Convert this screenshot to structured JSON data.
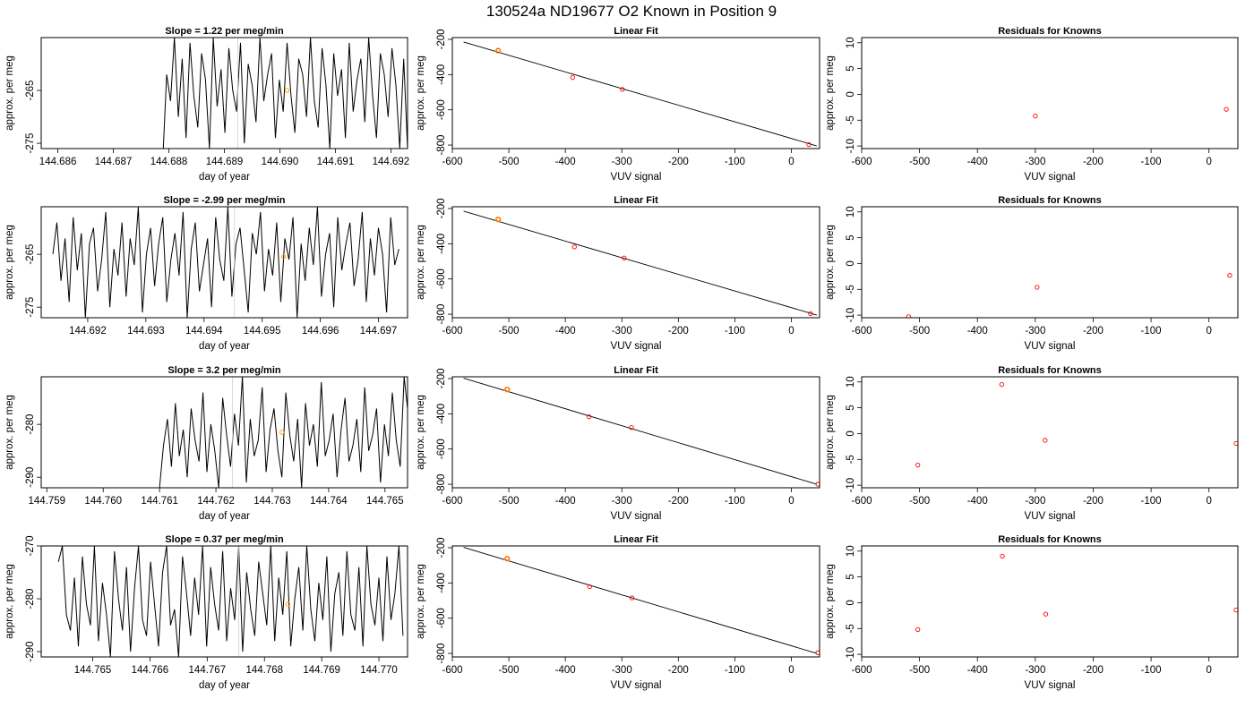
{
  "suptitle": "130524a     ND19677   O2 Known in Position  9",
  "colors": {
    "line": "#000000",
    "point": "#ff0000",
    "highlight": "#ffa500"
  },
  "chart_data": [
    {
      "type": "line",
      "row": 0,
      "panel": "timeseries",
      "title": "Slope =  1.22  per meg/min",
      "xlabel": "day of year",
      "ylabel": "approx. per meg",
      "xlim": [
        144.6857,
        144.6923
      ],
      "ylim": [
        -276,
        -255
      ],
      "xticks": [
        "144.686",
        "144.687",
        "144.688",
        "144.689",
        "144.690",
        "144.691",
        "144.692"
      ],
      "yticks": [
        "-265",
        "-275"
      ],
      "x": [
        144.6879,
        144.68796,
        144.68803,
        144.6881,
        144.68817,
        144.68824,
        144.68831,
        144.68838,
        144.68845,
        144.68852,
        144.68859,
        144.68866,
        144.68873,
        144.6888,
        144.68887,
        144.68894,
        144.68901,
        144.68908,
        144.68915,
        144.68922,
        144.68929,
        144.68936,
        144.68943,
        144.6895,
        144.68957,
        144.68964,
        144.68971,
        144.68978,
        144.68985,
        144.68992,
        144.68999,
        144.69006,
        144.69013,
        144.6902,
        144.69027,
        144.69034,
        144.69041,
        144.69048,
        144.69055,
        144.69062,
        144.69069,
        144.69076,
        144.69083,
        144.6909,
        144.69097,
        144.69104,
        144.69111,
        144.69118,
        144.69125,
        144.69132,
        144.69139,
        144.69146,
        144.69153,
        144.6916,
        144.69167,
        144.69174,
        144.69181,
        144.69188,
        144.69195,
        144.69202,
        144.69209,
        144.69216,
        144.69223,
        144.6923
      ],
      "y": [
        -276,
        -262,
        -267,
        -255,
        -270,
        -259,
        -274,
        -256,
        -266,
        -272,
        -258,
        -263,
        -276,
        -255,
        -268,
        -261,
        -273,
        -257,
        -265,
        -269,
        -256,
        -275,
        -260,
        -264,
        -271,
        -255,
        -267,
        -262,
        -258,
        -274,
        -263,
        -269,
        -256,
        -266,
        -273,
        -259,
        -262,
        -270,
        -255,
        -267,
        -272,
        -257,
        -264,
        -276,
        -258,
        -266,
        -261,
        -274,
        -256,
        -269,
        -263,
        -259,
        -271,
        -255,
        -266,
        -274,
        -258,
        -262,
        -270,
        -257,
        -264,
        -276,
        -259,
        -276
      ],
      "highlight": {
        "x": 144.69013,
        "y": -265
      }
    },
    {
      "type": "scatter",
      "row": 0,
      "panel": "fit",
      "title": "Linear Fit",
      "xlabel": "VUV signal",
      "ylabel": "approx. per meg",
      "xlim": [
        -600,
        50
      ],
      "ylim": [
        -820,
        -190
      ],
      "xticks": [
        -600,
        -500,
        -400,
        -300,
        -200,
        -100,
        0
      ],
      "yticks": [
        -200,
        -400,
        -600,
        -800
      ],
      "points": [
        [
          -519,
          -264
        ],
        [
          -387,
          -417
        ],
        [
          -299,
          -484
        ],
        [
          31,
          -797
        ]
      ],
      "fit_line": {
        "x": [
          -580,
          45
        ],
        "y": [
          -215,
          -805
        ]
      },
      "highlight": [
        -519,
        -264
      ]
    },
    {
      "type": "scatter",
      "row": 0,
      "panel": "resid",
      "title": "Residuals for Knowns",
      "xlabel": "VUV signal",
      "ylabel": "approx. per meg",
      "xlim": [
        -600,
        50
      ],
      "ylim": [
        -10.5,
        11
      ],
      "xticks": [
        -600,
        -500,
        -400,
        -300,
        -200,
        -100,
        0
      ],
      "yticks": [
        10,
        5,
        0,
        -5,
        -10
      ],
      "points": [
        [
          -300,
          -4.2
        ],
        [
          30,
          -2.9
        ]
      ]
    },
    {
      "type": "line",
      "row": 1,
      "panel": "timeseries",
      "title": "Slope =  -2.99  per meg/min",
      "xlabel": "day of year",
      "ylabel": "approx. per meg",
      "xlim": [
        144.6912,
        144.6975
      ],
      "ylim": [
        -277,
        -256
      ],
      "xticks": [
        "144.692",
        "144.693",
        "144.694",
        "144.695",
        "144.696",
        "144.697"
      ],
      "yticks": [
        "-265",
        "-275"
      ],
      "x": [
        144.6914,
        144.69147,
        144.69154,
        144.69161,
        144.69168,
        144.69175,
        144.69182,
        144.69189,
        144.69196,
        144.69203,
        144.6921,
        144.69217,
        144.69224,
        144.69231,
        144.69238,
        144.69245,
        144.69252,
        144.69259,
        144.69266,
        144.69273,
        144.6928,
        144.69287,
        144.69294,
        144.69301,
        144.69308,
        144.69315,
        144.69322,
        144.69329,
        144.69336,
        144.69343,
        144.6935,
        144.69357,
        144.69364,
        144.69371,
        144.69378,
        144.69385,
        144.69392,
        144.69399,
        144.69406,
        144.69413,
        144.6942,
        144.69427,
        144.69434,
        144.69441,
        144.69448,
        144.69455,
        144.69462,
        144.69469,
        144.69476,
        144.69483,
        144.6949,
        144.69497,
        144.69504,
        144.69511,
        144.69518,
        144.69525,
        144.69532,
        144.69539,
        144.69546,
        144.69553,
        144.6956,
        144.69567,
        144.69574,
        144.69581,
        144.69588,
        144.69595,
        144.69602,
        144.69609,
        144.69616,
        144.69623,
        144.6963,
        144.69637,
        144.69644,
        144.69651,
        144.69658,
        144.69665,
        144.69672,
        144.69679,
        144.69686,
        144.69693,
        144.697,
        144.69707,
        144.69714,
        144.69721,
        144.69728,
        144.69735
      ],
      "y": [
        -265,
        -259,
        -270,
        -262,
        -274,
        -258,
        -268,
        -261,
        -277,
        -263,
        -260,
        -272,
        -266,
        -257,
        -275,
        -264,
        -269,
        -259,
        -273,
        -262,
        -267,
        -256,
        -276,
        -265,
        -260,
        -271,
        -263,
        -258,
        -274,
        -266,
        -261,
        -269,
        -257,
        -277,
        -264,
        -259,
        -272,
        -267,
        -262,
        -275,
        -258,
        -266,
        -270,
        -256,
        -273,
        -263,
        -260,
        -268,
        -276,
        -261,
        -265,
        -257,
        -272,
        -264,
        -269,
        -259,
        -274,
        -262,
        -266,
        -258,
        -277,
        -263,
        -270,
        -260,
        -267,
        -256,
        -273,
        -265,
        -261,
        -275,
        -258,
        -268,
        -263,
        -259,
        -271,
        -266,
        -257,
        -274,
        -262,
        -269,
        -260,
        -265,
        -276,
        -258,
        -267,
        -264
      ],
      "highlight": {
        "x": 144.69537,
        "y": -265.5
      }
    },
    {
      "type": "scatter",
      "row": 1,
      "panel": "fit",
      "title": "Linear Fit",
      "xlabel": "VUV signal",
      "ylabel": "approx. per meg",
      "xlim": [
        -600,
        50
      ],
      "ylim": [
        -820,
        -190
      ],
      "xticks": [
        -600,
        -500,
        -400,
        -300,
        -200,
        -100,
        0
      ],
      "yticks": [
        -200,
        -400,
        -600,
        -800
      ],
      "points": [
        [
          -519,
          -262
        ],
        [
          -384,
          -418
        ],
        [
          -296,
          -481
        ],
        [
          34,
          -797
        ]
      ],
      "fit_line": {
        "x": [
          -580,
          45
        ],
        "y": [
          -215,
          -805
        ]
      },
      "highlight": [
        -519,
        -262
      ]
    },
    {
      "type": "scatter",
      "row": 1,
      "panel": "resid",
      "title": "Residuals for Knowns",
      "xlabel": "VUV signal",
      "ylabel": "approx. per meg",
      "xlim": [
        -600,
        50
      ],
      "ylim": [
        -10.5,
        11
      ],
      "xticks": [
        -600,
        -500,
        -400,
        -300,
        -200,
        -100,
        0
      ],
      "yticks": [
        10,
        5,
        0,
        -5,
        -10
      ],
      "points": [
        [
          -519,
          -10.3
        ],
        [
          -297,
          -4.6
        ],
        [
          36,
          -2.3
        ]
      ]
    },
    {
      "type": "line",
      "row": 2,
      "panel": "timeseries",
      "title": "Slope =  3.2  per meg/min",
      "xlabel": "day of year",
      "ylabel": "approx. per meg",
      "xlim": [
        144.7589,
        144.7654
      ],
      "ylim": [
        -292,
        -271
      ],
      "xticks": [
        "144.759",
        "144.760",
        "144.761",
        "144.762",
        "144.763",
        "144.764",
        "144.765"
      ],
      "yticks": [
        "-280",
        "-290"
      ],
      "x": [
        144.761,
        144.76107,
        144.76114,
        144.76121,
        144.76128,
        144.76135,
        144.76142,
        144.76149,
        144.76156,
        144.76163,
        144.7617,
        144.76177,
        144.76184,
        144.76191,
        144.76198,
        144.76205,
        144.76212,
        144.76219,
        144.76226,
        144.76233,
        144.7624,
        144.76247,
        144.76254,
        144.76261,
        144.76268,
        144.76275,
        144.76282,
        144.76289,
        144.76296,
        144.76303,
        144.7631,
        144.76317,
        144.76324,
        144.76331,
        144.76338,
        144.76345,
        144.76352,
        144.76359,
        144.76366,
        144.76373,
        144.7638,
        144.76387,
        144.76394,
        144.76401,
        144.76408,
        144.76415,
        144.76422,
        144.76429,
        144.76436,
        144.76443,
        144.7645,
        144.76457,
        144.76464,
        144.76471,
        144.76478,
        144.76485,
        144.76492,
        144.76499,
        144.76506,
        144.76513,
        144.7652,
        144.76527,
        144.76534,
        144.76541
      ],
      "y": [
        -292,
        -284,
        -279,
        -288,
        -276,
        -286,
        -281,
        -290,
        -277,
        -283,
        -287,
        -274,
        -289,
        -280,
        -285,
        -292,
        -275,
        -282,
        -288,
        -278,
        -284,
        -271,
        -291,
        -279,
        -286,
        -283,
        -273,
        -289,
        -281,
        -277,
        -285,
        -290,
        -274,
        -282,
        -287,
        -279,
        -292,
        -276,
        -284,
        -280,
        -288,
        -272,
        -286,
        -283,
        -278,
        -290,
        -281,
        -275,
        -287,
        -284,
        -279,
        -289,
        -273,
        -285,
        -282,
        -277,
        -291,
        -280,
        -286,
        -274,
        -283,
        -288,
        -271,
        -278
      ],
      "highlight": {
        "x": 144.76317,
        "y": -281.5
      }
    },
    {
      "type": "scatter",
      "row": 2,
      "panel": "fit",
      "title": "Linear Fit",
      "xlabel": "VUV signal",
      "ylabel": "approx. per meg",
      "xlim": [
        -600,
        50
      ],
      "ylim": [
        -820,
        -190
      ],
      "xticks": [
        -600,
        -500,
        -400,
        -300,
        -200,
        -100,
        0
      ],
      "yticks": [
        -200,
        -400,
        -600,
        -800
      ],
      "points": [
        [
          -503,
          -262
        ],
        [
          -358,
          -417
        ],
        [
          -283,
          -478
        ],
        [
          47,
          -800
        ]
      ],
      "fit_line": {
        "x": [
          -580,
          45
        ],
        "y": [
          -198,
          -800
        ]
      },
      "highlight": [
        -503,
        -262
      ]
    },
    {
      "type": "scatter",
      "row": 2,
      "panel": "resid",
      "title": "Residuals for Knowns",
      "xlabel": "VUV signal",
      "ylabel": "approx. per meg",
      "xlim": [
        -600,
        50
      ],
      "ylim": [
        -10.5,
        11
      ],
      "xticks": [
        -600,
        -500,
        -400,
        -300,
        -200,
        -100,
        0
      ],
      "yticks": [
        10,
        5,
        0,
        -5,
        -10
      ],
      "points": [
        [
          -503,
          -6.1
        ],
        [
          -358,
          9.5
        ],
        [
          -283,
          -1.3
        ],
        [
          47,
          -1.9
        ]
      ]
    },
    {
      "type": "line",
      "row": 3,
      "panel": "timeseries",
      "title": "Slope =  0.37  per meg/min",
      "xlabel": "day of year",
      "ylabel": "approx. per meg",
      "xlim": [
        144.7641,
        144.7705
      ],
      "ylim": [
        -291,
        -270
      ],
      "xticks": [
        "144.765",
        "144.766",
        "144.767",
        "144.768",
        "144.769",
        "144.770"
      ],
      "yticks": [
        "-270",
        "-280",
        "-290"
      ],
      "x": [
        144.7644,
        144.76447,
        144.76454,
        144.76461,
        144.76468,
        144.76475,
        144.76482,
        144.76489,
        144.76496,
        144.76503,
        144.7651,
        144.76517,
        144.76524,
        144.76531,
        144.76538,
        144.76545,
        144.76552,
        144.76559,
        144.76566,
        144.76573,
        144.7658,
        144.76587,
        144.76594,
        144.76601,
        144.76608,
        144.76615,
        144.76622,
        144.76629,
        144.76636,
        144.76643,
        144.7665,
        144.76657,
        144.76664,
        144.76671,
        144.76678,
        144.76685,
        144.76692,
        144.76699,
        144.76706,
        144.76713,
        144.7672,
        144.76727,
        144.76734,
        144.76741,
        144.76748,
        144.76755,
        144.76762,
        144.76769,
        144.76776,
        144.76783,
        144.7679,
        144.76797,
        144.76804,
        144.76811,
        144.76818,
        144.76825,
        144.76832,
        144.76839,
        144.76846,
        144.76853,
        144.7686,
        144.76867,
        144.76874,
        144.76881,
        144.76888,
        144.76895,
        144.76902,
        144.76909,
        144.76916,
        144.76923,
        144.7693,
        144.76937,
        144.76944,
        144.76951,
        144.76958,
        144.76965,
        144.76972,
        144.76979,
        144.76986,
        144.76993,
        144.77,
        144.77007,
        144.77014,
        144.77021,
        144.77028,
        144.77035,
        144.77042
      ],
      "y": [
        -273,
        -270,
        -283,
        -286,
        -276,
        -289,
        -272,
        -281,
        -285,
        -270,
        -288,
        -277,
        -283,
        -291,
        -271,
        -280,
        -286,
        -274,
        -290,
        -278,
        -270,
        -284,
        -287,
        -273,
        -281,
        -289,
        -275,
        -270,
        -285,
        -282,
        -291,
        -272,
        -279,
        -287,
        -276,
        -283,
        -270,
        -289,
        -274,
        -281,
        -286,
        -271,
        -288,
        -278,
        -284,
        -270,
        -290,
        -275,
        -282,
        -287,
        -273,
        -279,
        -285,
        -270,
        -288,
        -276,
        -283,
        -271,
        -289,
        -280,
        -274,
        -286,
        -270,
        -282,
        -288,
        -277,
        -284,
        -272,
        -290,
        -279,
        -275,
        -287,
        -271,
        -283,
        -286,
        -274,
        -289,
        -270,
        -281,
        -285,
        -276,
        -288,
        -272,
        -284,
        -279,
        -270,
        -287
      ],
      "highlight": {
        "x": 144.76841,
        "y": -281
      }
    },
    {
      "type": "scatter",
      "row": 3,
      "panel": "fit",
      "title": "Linear Fit",
      "xlabel": "VUV signal",
      "ylabel": "approx. per meg",
      "xlim": [
        -600,
        50
      ],
      "ylim": [
        -820,
        -190
      ],
      "xticks": [
        -600,
        -500,
        -400,
        -300,
        -200,
        -100,
        0
      ],
      "yticks": [
        -200,
        -400,
        -600,
        -800
      ],
      "points": [
        [
          -503,
          -262
        ],
        [
          -357,
          -421
        ],
        [
          -282,
          -485
        ],
        [
          47,
          -796
        ]
      ],
      "fit_line": {
        "x": [
          -580,
          45
        ],
        "y": [
          -198,
          -800
        ]
      },
      "highlight": [
        -503,
        -262
      ]
    },
    {
      "type": "scatter",
      "row": 3,
      "panel": "resid",
      "title": "Residuals for Knowns",
      "xlabel": "VUV signal",
      "ylabel": "approx. per meg",
      "xlim": [
        -600,
        50
      ],
      "ylim": [
        -10.5,
        11
      ],
      "xticks": [
        -600,
        -500,
        -400,
        -300,
        -200,
        -100,
        0
      ],
      "yticks": [
        10,
        5,
        0,
        -5,
        -10
      ],
      "points": [
        [
          -503,
          -5.2
        ],
        [
          -357,
          9.0
        ],
        [
          -282,
          -2.2
        ],
        [
          47,
          -1.4
        ]
      ]
    }
  ]
}
